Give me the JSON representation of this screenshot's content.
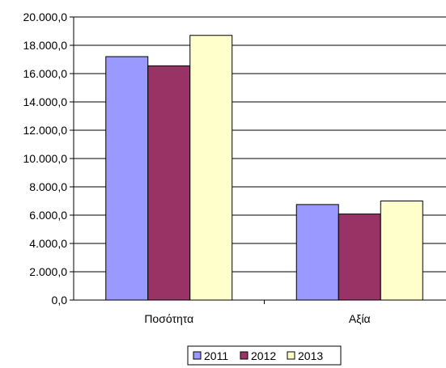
{
  "chart_data": {
    "type": "bar",
    "categories": [
      "Ποσότητα",
      "Αξία"
    ],
    "series": [
      {
        "name": "2011",
        "values": [
          17200,
          6750
        ],
        "color": "#9999FF"
      },
      {
        "name": "2012",
        "values": [
          16550,
          6080
        ],
        "color": "#993366"
      },
      {
        "name": "2013",
        "values": [
          18700,
          7000
        ],
        "color": "#FFFFCC"
      }
    ],
    "ylim": [
      0,
      20000
    ],
    "ytick_labels": [
      "0,0",
      "2.000,0",
      "4.000,0",
      "6.000,0",
      "8.000,0",
      "10.000,0",
      "12.000,0",
      "14.000,0",
      "16.000,0",
      "18.000,0",
      "20.000,0"
    ],
    "grid": true,
    "legend": "bottom",
    "title": "",
    "xlabel": "",
    "ylabel": ""
  }
}
